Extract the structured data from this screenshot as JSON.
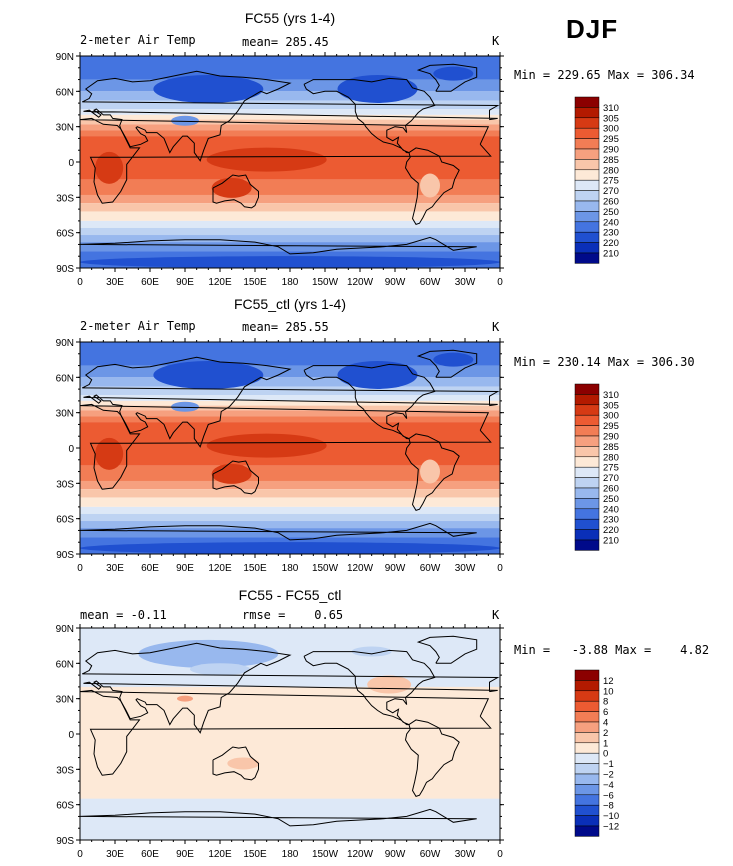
{
  "season": "DJF",
  "panels": [
    {
      "title": "FC55 (yrs 1-4)",
      "left_label": "2-meter Air Temp",
      "center_label": "mean= 285.45",
      "right_label": "K",
      "minmax": "Min = 229.65 Max = 306.34",
      "colorbar_labels": [
        "310",
        "305",
        "300",
        "295",
        "290",
        "285",
        "280",
        "275",
        "270",
        "260",
        "250",
        "240",
        "230",
        "220",
        "210"
      ],
      "colorbar_colors": [
        "#8b0000",
        "#b31a00",
        "#d63a14",
        "#ec5b32",
        "#f27d55",
        "#f6a07f",
        "#f9c6aa",
        "#fde9d7",
        "#dde8f7",
        "#bed3f2",
        "#98b8ee",
        "#6c96e6",
        "#4474e0",
        "#2050d0",
        "#0a2fb8",
        "#000a8a"
      ],
      "map_type": "temp"
    },
    {
      "title": "FC55_ctl (yrs 1-4)",
      "left_label": "2-meter Air Temp",
      "center_label": "mean= 285.55",
      "right_label": "K",
      "minmax": "Min = 230.14 Max = 306.30",
      "colorbar_labels": [
        "310",
        "305",
        "300",
        "295",
        "290",
        "285",
        "280",
        "275",
        "270",
        "260",
        "250",
        "240",
        "230",
        "220",
        "210"
      ],
      "colorbar_colors": [
        "#8b0000",
        "#b31a00",
        "#d63a14",
        "#ec5b32",
        "#f27d55",
        "#f6a07f",
        "#f9c6aa",
        "#fde9d7",
        "#dde8f7",
        "#bed3f2",
        "#98b8ee",
        "#6c96e6",
        "#4474e0",
        "#2050d0",
        "#0a2fb8",
        "#000a8a"
      ],
      "map_type": "temp"
    },
    {
      "title": "FC55 - FC55_ctl",
      "left_label": "mean =   -0.11",
      "center_label": "rmse =    0.65",
      "right_label": "K",
      "minmax": "Min =   -3.88 Max =    4.82",
      "colorbar_labels": [
        "12",
        "10",
        "8",
        "6",
        "4",
        "2",
        "1",
        "0",
        "−1",
        "−2",
        "−4",
        "−6",
        "−8",
        "−10",
        "−12"
      ],
      "colorbar_colors": [
        "#8b0000",
        "#b31a00",
        "#d63a14",
        "#ec5b32",
        "#f27d55",
        "#f6a07f",
        "#f9c6aa",
        "#fde9d7",
        "#dde8f7",
        "#bed3f2",
        "#98b8ee",
        "#6c96e6",
        "#4474e0",
        "#2050d0",
        "#0a2fb8",
        "#000a8a"
      ],
      "map_type": "diff"
    }
  ],
  "lat_labels": [
    "90N",
    "60N",
    "30N",
    "0",
    "30S",
    "60S",
    "90S"
  ],
  "lon_labels": [
    "0",
    "30E",
    "60E",
    "90E",
    "120E",
    "150E",
    "180",
    "150W",
    "120W",
    "90W",
    "60W",
    "30W",
    "0"
  ]
}
